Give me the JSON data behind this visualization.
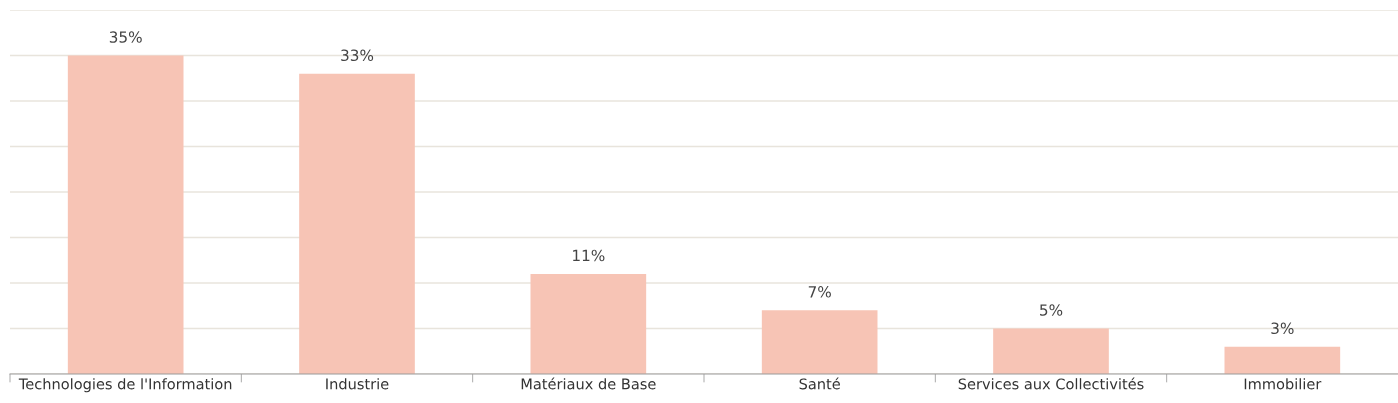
{
  "chart_data": {
    "type": "bar",
    "categories": [
      "Technologies de l'Information",
      "Industrie",
      "Matériaux de Base",
      "Santé",
      "Services aux Collectivités",
      "Immobilier"
    ],
    "values": [
      35,
      33,
      11,
      7,
      5,
      3
    ],
    "value_labels": [
      "35%",
      "33%",
      "11%",
      "7%",
      "5%",
      "3%"
    ],
    "color": "#f7c4b5",
    "ylim": [
      0,
      40
    ],
    "yticks": [
      {
        "value": 0,
        "label": null
      },
      {
        "value": 5,
        "label": null
      },
      {
        "value": 10,
        "label": null
      },
      {
        "value": 15,
        "label": null
      },
      {
        "value": 20,
        "label": null
      },
      {
        "value": 25,
        "label": null
      },
      {
        "value": 30,
        "label": null
      },
      {
        "value": 35,
        "label": null
      },
      {
        "value": 40,
        "label": null
      }
    ],
    "grid": "y",
    "tick_labels": "x"
  }
}
